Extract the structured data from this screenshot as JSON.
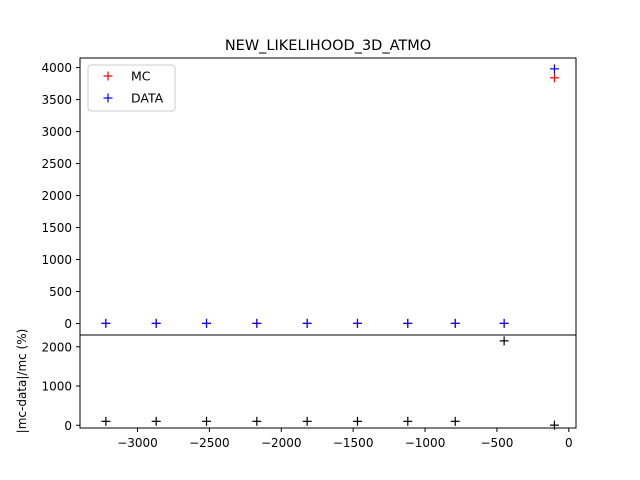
{
  "chart_data": [
    {
      "type": "scatter",
      "title": "NEW_LIKELIHOOD_3D_ATMO",
      "xlabel": "",
      "ylabel": "",
      "xlim": [
        -3400,
        50
      ],
      "ylim": [
        -180,
        4150
      ],
      "yticks": [
        0,
        500,
        1000,
        1500,
        2000,
        2500,
        3000,
        3500,
        4000
      ],
      "marker": "+",
      "legend": "top-left",
      "grid": false,
      "series": [
        {
          "name": "MC",
          "color": "#ff0000",
          "x": [
            -3220,
            -2870,
            -2520,
            -2170,
            -1820,
            -1470,
            -1120,
            -790,
            -450,
            -100
          ],
          "y": [
            2,
            2,
            2,
            2,
            2,
            2,
            2,
            2,
            2,
            3840
          ]
        },
        {
          "name": "DATA",
          "color": "#0000ff",
          "x": [
            -3220,
            -2870,
            -2520,
            -2170,
            -1820,
            -1470,
            -1120,
            -790,
            -450,
            -100
          ],
          "y": [
            2,
            2,
            2,
            2,
            2,
            2,
            2,
            2,
            2,
            3980
          ]
        }
      ]
    },
    {
      "type": "scatter",
      "xlabel": "",
      "ylabel": "|mc-data|/mc (%)",
      "xlim": [
        -3400,
        50
      ],
      "ylim": [
        -70,
        2300
      ],
      "yticks": [
        0,
        1000,
        2000
      ],
      "xticks": [
        -3000,
        -2500,
        -2000,
        -1500,
        -1000,
        -500,
        0
      ],
      "xtick_labels": [
        "−3000",
        "−2500",
        "−2000",
        "−1500",
        "−1000",
        "−500",
        "0"
      ],
      "marker": "+",
      "grid": false,
      "series": [
        {
          "color": "#000000",
          "x": [
            -3220,
            -2870,
            -2520,
            -2170,
            -1820,
            -1470,
            -1120,
            -790,
            -450,
            -100
          ],
          "y": [
            100,
            100,
            100,
            100,
            100,
            100,
            100,
            100,
            2150,
            3
          ]
        }
      ]
    }
  ]
}
